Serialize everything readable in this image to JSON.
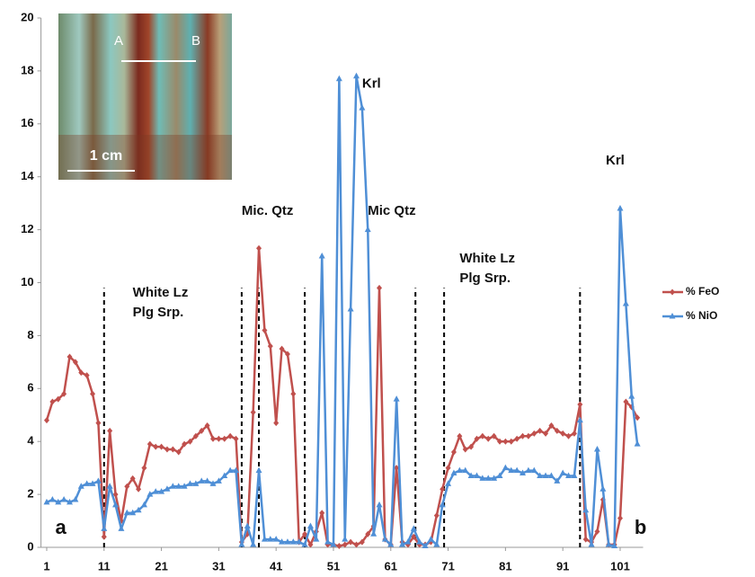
{
  "chart_data": {
    "type": "line",
    "x": [
      1,
      2,
      3,
      4,
      5,
      6,
      7,
      8,
      9,
      10,
      11,
      12,
      13,
      14,
      15,
      16,
      17,
      18,
      19,
      20,
      21,
      22,
      23,
      24,
      25,
      26,
      27,
      28,
      29,
      30,
      31,
      32,
      33,
      34,
      35,
      36,
      37,
      38,
      39,
      40,
      41,
      42,
      43,
      44,
      45,
      46,
      47,
      48,
      49,
      50,
      51,
      52,
      53,
      54,
      55,
      56,
      57,
      58,
      59,
      60,
      61,
      62,
      63,
      64,
      65,
      66,
      67,
      68,
      69,
      70,
      71,
      72,
      73,
      74,
      75,
      76,
      77,
      78,
      79,
      80,
      81,
      82,
      83,
      84,
      85,
      86,
      87,
      88,
      89,
      90,
      91,
      92,
      93,
      94,
      95,
      96,
      97,
      98,
      99,
      100,
      101,
      102,
      103,
      104
    ],
    "series": [
      {
        "name": "% FeO",
        "color": "#c0504d",
        "marker": "diamond",
        "values": [
          4.8,
          5.5,
          5.6,
          5.8,
          7.2,
          7.0,
          6.6,
          6.5,
          5.8,
          4.7,
          0.4,
          4.4,
          2.0,
          1.0,
          2.3,
          2.6,
          2.2,
          3.0,
          3.9,
          3.8,
          3.8,
          3.7,
          3.7,
          3.6,
          3.9,
          4.0,
          4.2,
          4.4,
          4.6,
          4.1,
          4.1,
          4.1,
          4.2,
          4.1,
          0.2,
          0.5,
          5.1,
          11.3,
          8.2,
          7.6,
          4.7,
          7.5,
          7.3,
          5.8,
          0.2,
          0.5,
          0.1,
          0.6,
          1.3,
          0.1,
          0.1,
          0.05,
          0.1,
          0.2,
          0.1,
          0.2,
          0.5,
          0.8,
          9.8,
          0.3,
          0.1,
          3.0,
          0.2,
          0.1,
          0.4,
          0.1,
          0.1,
          0.2,
          1.2,
          2.2,
          3.0,
          3.6,
          4.2,
          3.7,
          3.8,
          4.1,
          4.2,
          4.1,
          4.2,
          4.0,
          4.0,
          4.0,
          4.1,
          4.2,
          4.2,
          4.3,
          4.4,
          4.3,
          4.6,
          4.4,
          4.3,
          4.2,
          4.3,
          5.4,
          0.3,
          0.2,
          0.6,
          1.8,
          0.1,
          0.1,
          1.1,
          5.5,
          5.3,
          4.9
        ]
      },
      {
        "name": "% NiO",
        "color": "#4f8fd6",
        "marker": "triangle",
        "values": [
          1.7,
          1.8,
          1.7,
          1.8,
          1.7,
          1.8,
          2.3,
          2.4,
          2.4,
          2.5,
          0.7,
          2.3,
          1.6,
          0.7,
          1.3,
          1.3,
          1.4,
          1.6,
          2.0,
          2.1,
          2.1,
          2.2,
          2.3,
          2.3,
          2.3,
          2.4,
          2.4,
          2.5,
          2.5,
          2.4,
          2.5,
          2.7,
          2.9,
          2.9,
          0.1,
          0.8,
          0.1,
          2.9,
          0.3,
          0.3,
          0.3,
          0.2,
          0.2,
          0.2,
          0.2,
          0.1,
          0.8,
          0.3,
          11.0,
          0.2,
          0.1,
          17.7,
          0.3,
          9.0,
          17.8,
          16.6,
          12.0,
          0.5,
          1.6,
          0.3,
          0.1,
          5.6,
          0.1,
          0.2,
          0.7,
          0.2,
          0.05,
          0.3,
          0.1,
          1.6,
          2.4,
          2.8,
          2.9,
          2.9,
          2.7,
          2.7,
          2.6,
          2.6,
          2.6,
          2.7,
          3.0,
          2.9,
          2.9,
          2.8,
          2.9,
          2.9,
          2.7,
          2.7,
          2.7,
          2.5,
          2.8,
          2.7,
          2.7,
          4.8,
          1.4,
          0.1,
          3.7,
          2.2,
          0.1,
          0.05,
          12.8,
          9.2,
          5.7,
          3.9
        ]
      }
    ],
    "xlim": [
      0,
      105
    ],
    "xticks": [
      1,
      11,
      21,
      31,
      41,
      51,
      61,
      71,
      81,
      91,
      101
    ],
    "ylim": [
      0,
      20
    ],
    "yticks": [
      0,
      2,
      4,
      6,
      8,
      10,
      12,
      14,
      16,
      18,
      20
    ],
    "grid": false,
    "legend": "right",
    "dividers": [
      11,
      35,
      38,
      46,
      65.3,
      70.3,
      94
    ],
    "divider_range": [
      0,
      9.8
    ],
    "annotations": [
      {
        "lines": [
          "White Lz",
          "Plg Srp."
        ],
        "x": 16,
        "y": 9.6
      },
      {
        "lines": [
          "Mic. Qtz"
        ],
        "x": 35,
        "y": 12.7
      },
      {
        "lines": [
          "Krl"
        ],
        "x": 56,
        "y": 17.5
      },
      {
        "lines": [
          "Mic Qtz"
        ],
        "x": 57,
        "y": 12.7
      },
      {
        "lines": [
          "White Lz",
          "Plg Srp."
        ],
        "x": 73,
        "y": 10.9
      },
      {
        "lines": [
          "Krl"
        ],
        "x": 98.5,
        "y": 14.6
      },
      {
        "lines": [
          "a"
        ],
        "x": 2.5,
        "y": 0.7
      },
      {
        "lines": [
          "b"
        ],
        "x": 103.5,
        "y": 0.7
      }
    ],
    "inset_labels": [
      "A",
      "B",
      "1 cm"
    ]
  }
}
